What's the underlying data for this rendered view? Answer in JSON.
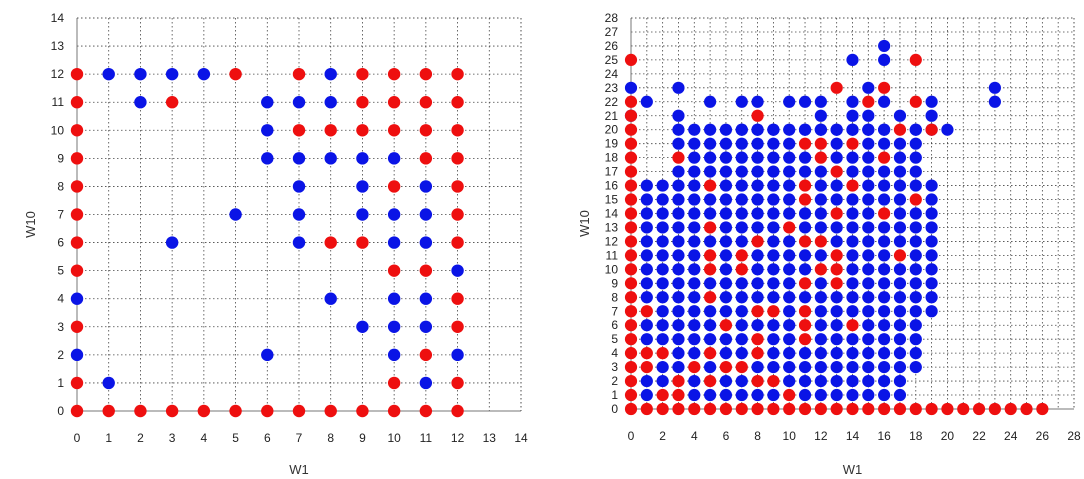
{
  "chart_data": [
    {
      "type": "scatter",
      "title": "",
      "xlabel": "W1",
      "ylabel": "W10",
      "xlim": [
        0,
        14
      ],
      "ylim": [
        0,
        14
      ],
      "xticks": [
        "0",
        "1",
        "2",
        "3",
        "4",
        "5",
        "6",
        "7",
        "8",
        "9",
        "10",
        "11",
        "12",
        "13",
        "14"
      ],
      "yticks": [
        "0",
        "1",
        "2",
        "3",
        "4",
        "5",
        "6",
        "7",
        "8",
        "9",
        "10",
        "11",
        "12",
        "13",
        "14"
      ],
      "grid": true,
      "colors": {
        "blue": "#0a14e6",
        "red": "#ee0f0f"
      },
      "series": [
        {
          "color": "blue",
          "points": [
            [
              1,
              12
            ],
            [
              2,
              12
            ],
            [
              3,
              12
            ],
            [
              4,
              12
            ],
            [
              8,
              12
            ],
            [
              2,
              11
            ],
            [
              6,
              11
            ],
            [
              7,
              11
            ],
            [
              8,
              11
            ],
            [
              6,
              10
            ],
            [
              6,
              9
            ],
            [
              7,
              9
            ],
            [
              8,
              9
            ],
            [
              9,
              9
            ],
            [
              10,
              9
            ],
            [
              7,
              8
            ],
            [
              9,
              8
            ],
            [
              11,
              8
            ],
            [
              5,
              7
            ],
            [
              7,
              7
            ],
            [
              9,
              7
            ],
            [
              10,
              7
            ],
            [
              11,
              7
            ],
            [
              3,
              6
            ],
            [
              7,
              6
            ],
            [
              10,
              6
            ],
            [
              11,
              6
            ],
            [
              12,
              5
            ],
            [
              0,
              4
            ],
            [
              8,
              4
            ],
            [
              10,
              4
            ],
            [
              11,
              4
            ],
            [
              9,
              3
            ],
            [
              10,
              3
            ],
            [
              11,
              3
            ],
            [
              0,
              2
            ],
            [
              6,
              2
            ],
            [
              10,
              2
            ],
            [
              12,
              2
            ],
            [
              1,
              1
            ],
            [
              11,
              1
            ]
          ]
        },
        {
          "color": "red",
          "points": [
            [
              0,
              12
            ],
            [
              5,
              12
            ],
            [
              7,
              12
            ],
            [
              9,
              12
            ],
            [
              10,
              12
            ],
            [
              11,
              12
            ],
            [
              12,
              12
            ],
            [
              0,
              11
            ],
            [
              3,
              11
            ],
            [
              9,
              11
            ],
            [
              10,
              11
            ],
            [
              11,
              11
            ],
            [
              12,
              11
            ],
            [
              0,
              10
            ],
            [
              7,
              10
            ],
            [
              8,
              10
            ],
            [
              9,
              10
            ],
            [
              10,
              10
            ],
            [
              11,
              10
            ],
            [
              12,
              10
            ],
            [
              0,
              9
            ],
            [
              11,
              9
            ],
            [
              12,
              9
            ],
            [
              0,
              8
            ],
            [
              10,
              8
            ],
            [
              12,
              8
            ],
            [
              0,
              7
            ],
            [
              12,
              7
            ],
            [
              0,
              6
            ],
            [
              8,
              6
            ],
            [
              9,
              6
            ],
            [
              12,
              6
            ],
            [
              0,
              5
            ],
            [
              10,
              5
            ],
            [
              11,
              5
            ],
            [
              12,
              4
            ],
            [
              0,
              3
            ],
            [
              12,
              3
            ],
            [
              11,
              2
            ],
            [
              0,
              1
            ],
            [
              10,
              1
            ],
            [
              12,
              1
            ],
            [
              0,
              0
            ],
            [
              1,
              0
            ],
            [
              2,
              0
            ],
            [
              3,
              0
            ],
            [
              4,
              0
            ],
            [
              5,
              0
            ],
            [
              6,
              0
            ],
            [
              7,
              0
            ],
            [
              8,
              0
            ],
            [
              9,
              0
            ],
            [
              10,
              0
            ],
            [
              11,
              0
            ],
            [
              12,
              0
            ]
          ]
        }
      ]
    },
    {
      "type": "scatter",
      "title": "",
      "xlabel": "W1",
      "ylabel": "W10",
      "xlim": [
        0,
        28
      ],
      "ylim": [
        0,
        28
      ],
      "xticks": [
        "0",
        "2",
        "4",
        "6",
        "8",
        "10",
        "12",
        "14",
        "16",
        "18",
        "20",
        "22",
        "24",
        "26",
        "28"
      ],
      "yticks": [
        "0",
        "1",
        "2",
        "3",
        "4",
        "5",
        "6",
        "7",
        "8",
        "9",
        "10",
        "11",
        "12",
        "13",
        "14",
        "15",
        "16",
        "17",
        "18",
        "19",
        "20",
        "21",
        "22",
        "23",
        "24",
        "25",
        "26",
        "27",
        "28"
      ],
      "grid": true,
      "colors": {
        "blue": "#0a14e6",
        "red": "#ee0f0f"
      },
      "series": [
        {
          "color": "blue",
          "points": [
            [
              16,
              26
            ],
            [
              14,
              25
            ],
            [
              16,
              25
            ],
            [
              0,
              23
            ],
            [
              3,
              23
            ],
            [
              15,
              23
            ],
            [
              23,
              23
            ],
            [
              1,
              22
            ],
            [
              5,
              22
            ],
            [
              7,
              22
            ],
            [
              8,
              22
            ],
            [
              10,
              22
            ],
            [
              11,
              22
            ],
            [
              12,
              22
            ],
            [
              14,
              22
            ],
            [
              16,
              22
            ],
            [
              19,
              22
            ],
            [
              23,
              22
            ],
            [
              0,
              21
            ],
            [
              3,
              21
            ],
            [
              12,
              21
            ],
            [
              14,
              21
            ],
            [
              15,
              21
            ],
            [
              17,
              21
            ],
            [
              19,
              21
            ],
            [
              7,
              20
            ],
            [
              8,
              20
            ],
            [
              9,
              20
            ],
            [
              11,
              20
            ],
            [
              12,
              20
            ],
            [
              13,
              20
            ],
            [
              14,
              20
            ],
            [
              15,
              20
            ],
            [
              16,
              20
            ],
            [
              18,
              20
            ],
            [
              19,
              20
            ],
            [
              20,
              20
            ]
          ],
          "dense_fill": {
            "x_range": [
              1,
              19
            ],
            "y_range": [
              1,
              20
            ],
            "note": "dense blue region with red mixed"
          }
        },
        {
          "color": "red",
          "points": [
            [
              0,
              25
            ],
            [
              18,
              25
            ],
            [
              0,
              22
            ],
            [
              13,
              23
            ],
            [
              16,
              23
            ],
            [
              15,
              22
            ],
            [
              18,
              22
            ],
            [
              0,
              21
            ],
            [
              8,
              21
            ],
            [
              0,
              20
            ],
            [
              17,
              20
            ],
            [
              19,
              20
            ],
            [
              0,
              19
            ],
            [
              11,
              19
            ],
            [
              12,
              19
            ],
            [
              14,
              19
            ],
            [
              0,
              18
            ],
            [
              3,
              18
            ],
            [
              12,
              18
            ],
            [
              16,
              18
            ],
            [
              0,
              17
            ],
            [
              13,
              17
            ],
            [
              0,
              16
            ],
            [
              5,
              16
            ],
            [
              11,
              16
            ],
            [
              14,
              16
            ],
            [
              0,
              15
            ],
            [
              11,
              15
            ],
            [
              18,
              15
            ],
            [
              0,
              14
            ],
            [
              13,
              14
            ],
            [
              16,
              14
            ],
            [
              0,
              13
            ],
            [
              5,
              13
            ],
            [
              10,
              13
            ],
            [
              0,
              12
            ],
            [
              8,
              12
            ],
            [
              11,
              12
            ],
            [
              12,
              12
            ],
            [
              0,
              11
            ],
            [
              5,
              11
            ],
            [
              7,
              11
            ],
            [
              13,
              11
            ],
            [
              17,
              11
            ],
            [
              0,
              10
            ],
            [
              5,
              10
            ],
            [
              7,
              10
            ],
            [
              12,
              10
            ],
            [
              13,
              10
            ],
            [
              0,
              9
            ],
            [
              11,
              9
            ],
            [
              13,
              9
            ],
            [
              0,
              8
            ],
            [
              5,
              8
            ],
            [
              0,
              7
            ],
            [
              1,
              7
            ],
            [
              8,
              7
            ],
            [
              9,
              7
            ],
            [
              11,
              7
            ],
            [
              0,
              6
            ],
            [
              6,
              6
            ],
            [
              11,
              6
            ],
            [
              14,
              6
            ],
            [
              0,
              5
            ],
            [
              8,
              5
            ],
            [
              11,
              5
            ],
            [
              0,
              4
            ],
            [
              1,
              4
            ],
            [
              2,
              4
            ],
            [
              5,
              4
            ],
            [
              8,
              4
            ],
            [
              0,
              3
            ],
            [
              1,
              3
            ],
            [
              4,
              3
            ],
            [
              6,
              3
            ],
            [
              7,
              3
            ],
            [
              0,
              2
            ],
            [
              3,
              2
            ],
            [
              5,
              2
            ],
            [
              8,
              2
            ],
            [
              9,
              2
            ],
            [
              0,
              1
            ],
            [
              2,
              1
            ],
            [
              3,
              1
            ],
            [
              10,
              1
            ],
            [
              0,
              0
            ],
            [
              1,
              0
            ],
            [
              2,
              0
            ],
            [
              3,
              0
            ],
            [
              4,
              0
            ],
            [
              5,
              0
            ],
            [
              6,
              0
            ],
            [
              7,
              0
            ],
            [
              8,
              0
            ],
            [
              9,
              0
            ],
            [
              10,
              0
            ],
            [
              11,
              0
            ],
            [
              12,
              0
            ],
            [
              13,
              0
            ],
            [
              14,
              0
            ],
            [
              15,
              0
            ],
            [
              16,
              0
            ],
            [
              17,
              0
            ],
            [
              18,
              0
            ],
            [
              19,
              0
            ],
            [
              20,
              0
            ],
            [
              21,
              0
            ],
            [
              22,
              0
            ],
            [
              23,
              0
            ],
            [
              24,
              0
            ],
            [
              25,
              0
            ],
            [
              26,
              0
            ]
          ]
        }
      ]
    }
  ]
}
